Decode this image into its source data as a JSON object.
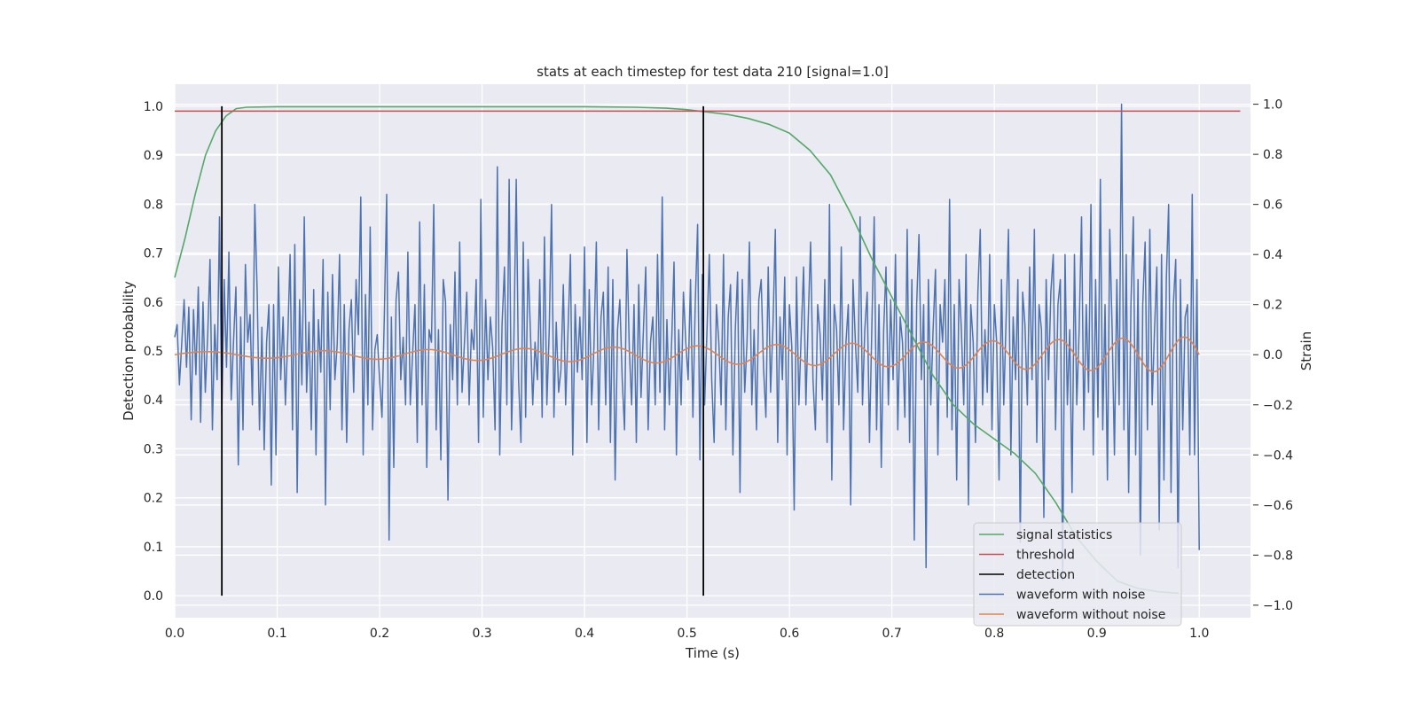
{
  "chart_data": {
    "type": "line",
    "title": "stats at each timestep for test data 210 [signal=1.0]",
    "xlabel": "Time (s)",
    "ylabel": "Detection probability",
    "y2label": "Strain",
    "xlim": [
      0.0,
      1.05
    ],
    "ylim": [
      -0.045,
      1.045
    ],
    "y2lim": [
      -1.05,
      1.08
    ],
    "xticks": [
      "0.0",
      "0.1",
      "0.2",
      "0.3",
      "0.4",
      "0.5",
      "0.6",
      "0.7",
      "0.8",
      "0.9",
      "1.0"
    ],
    "yticks": [
      "0.0",
      "0.1",
      "0.2",
      "0.3",
      "0.4",
      "0.5",
      "0.6",
      "0.7",
      "0.8",
      "0.9",
      "1.0"
    ],
    "y2ticks": [
      "−1.0",
      "−0.8",
      "−0.6",
      "−0.4",
      "−0.2",
      "0.0",
      "0.2",
      "0.4",
      "0.6",
      "0.8",
      "1.0"
    ],
    "grid": true,
    "legend_position": "bottom-right",
    "colors": {
      "background": "#eaeaf2",
      "grid": "#ffffff",
      "signal_statistics": "#55a868",
      "threshold": "#c44e52",
      "detection": "#000000",
      "waveform_with_noise": "#4c72b0",
      "waveform_without_noise": "#dd8452"
    },
    "series": [
      {
        "name": "signal statistics",
        "axis": "left",
        "x": [
          0.0,
          0.01,
          0.02,
          0.03,
          0.04,
          0.05,
          0.06,
          0.07,
          0.1,
          0.2,
          0.3,
          0.4,
          0.45,
          0.48,
          0.5,
          0.52,
          0.54,
          0.56,
          0.58,
          0.6,
          0.62,
          0.64,
          0.66,
          0.68,
          0.7,
          0.72,
          0.74,
          0.76,
          0.78,
          0.8,
          0.82,
          0.84,
          0.86,
          0.88,
          0.9,
          0.92,
          0.94,
          0.96,
          0.98
        ],
        "y": [
          0.65,
          0.73,
          0.82,
          0.9,
          0.95,
          0.98,
          0.995,
          0.998,
          0.999,
          0.999,
          0.999,
          0.999,
          0.998,
          0.996,
          0.993,
          0.988,
          0.983,
          0.975,
          0.963,
          0.945,
          0.91,
          0.86,
          0.78,
          0.69,
          0.61,
          0.53,
          0.45,
          0.39,
          0.35,
          0.32,
          0.29,
          0.25,
          0.19,
          0.12,
          0.07,
          0.03,
          0.015,
          0.008,
          0.005
        ]
      },
      {
        "name": "threshold",
        "axis": "left",
        "x": [
          0.0,
          1.04
        ],
        "y": [
          0.99,
          0.99
        ]
      },
      {
        "name": "detection",
        "axis": "left",
        "segments": [
          {
            "x": 0.046,
            "y0": 0.0,
            "y1": 1.0
          },
          {
            "x": 0.516,
            "y0": 0.0,
            "y1": 1.0
          }
        ]
      },
      {
        "name": "waveform with noise",
        "axis": "right",
        "x_start": 0.0,
        "x_end": 1.0,
        "y": [
          0.07,
          0.12,
          -0.12,
          0.05,
          0.22,
          -0.05,
          0.19,
          -0.26,
          0.18,
          -0.08,
          0.27,
          -0.27,
          0.21,
          -0.15,
          0.08,
          0.38,
          -0.3,
          0.12,
          -0.1,
          0.55,
          -0.24,
          0.3,
          -0.05,
          0.41,
          -0.18,
          0.06,
          0.27,
          -0.44,
          0.15,
          -0.3,
          0.36,
          0.05,
          0.16,
          -0.2,
          0.6,
          0.25,
          -0.3,
          0.11,
          -0.38,
          0.05,
          0.2,
          -0.52,
          0.2,
          -0.4,
          0.35,
          -0.1,
          0.15,
          -0.2,
          0.07,
          0.4,
          -0.3,
          0.44,
          -0.55,
          0.22,
          -0.12,
          0.55,
          -0.15,
          0.13,
          -0.3,
          0.26,
          -0.4,
          0.14,
          -0.07,
          0.38,
          -0.6,
          0.25,
          -0.22,
          0.32,
          -0.1,
          0.04,
          0.4,
          -0.3,
          0.2,
          -0.35,
          0.1,
          0.22,
          -0.15,
          0.3,
          0.08,
          0.63,
          -0.4,
          0.24,
          -0.2,
          0.51,
          -0.3,
          0.02,
          0.08,
          -0.1,
          -0.25,
          0.16,
          0.64,
          -0.74,
          0.15,
          -0.45,
          0.22,
          0.33,
          -0.1,
          0.07,
          -0.2,
          0.41,
          -0.2,
          0.0,
          0.2,
          -0.35,
          0.53,
          -0.2,
          0.28,
          -0.45,
          0.1,
          0.05,
          0.6,
          -0.3,
          0.1,
          -0.42,
          0.3,
          0.21,
          -0.58,
          0.12,
          -0.1,
          0.33,
          -0.2,
          0.45,
          -0.15,
          0.05,
          0.25,
          -0.2,
          0.1,
          0.02,
          0.3,
          -0.35,
          0.62,
          -0.25,
          0.22,
          -0.1,
          0.15,
          0.03,
          -0.3,
          0.75,
          -0.4,
          0.12,
          0.35,
          -0.2,
          0.7,
          -0.3,
          0.05,
          0.7,
          -0.1,
          -0.35,
          0.45,
          -0.25,
          0.38,
          0.1,
          -0.2,
          0.05,
          -0.1,
          0.3,
          -0.25,
          0.47,
          -0.2,
          0.1,
          0.6,
          -0.25,
          0.13,
          -0.15,
          -0.06,
          0.28,
          -0.2,
          0.1,
          0.4,
          -0.4,
          0.2,
          -0.07,
          0.15,
          -0.1,
          0.43,
          -0.35,
          0.26,
          -0.2,
          0.03,
          0.45,
          -0.3,
          0.15,
          0.25,
          -0.2,
          0.35,
          -0.35,
          0.3,
          -0.5,
          0.1,
          0.22,
          -0.1,
          -0.3,
          0.42,
          0.02,
          -0.2,
          0.2,
          -0.35,
          0.28,
          -0.17,
          0.1,
          0.35,
          -0.3,
          0.05,
          0.15,
          -0.2,
          0.4,
          -0.15,
          0.63,
          -0.3,
          0.14,
          -0.2,
          0.06,
          0.37,
          -0.4,
          0.1,
          -0.2,
          0.25,
          0.05,
          -0.1,
          0.3,
          -0.25,
          0.2,
          0.52,
          -0.42,
          0.32,
          -0.2,
          0.1,
          0.4,
          -0.1,
          -0.35,
          0.2,
          0.05,
          -0.2,
          0.4,
          -0.3,
          0.15,
          0.28,
          -0.4,
          0.1,
          0.33,
          -0.55,
          0.3,
          -0.15,
          0.05,
          0.45,
          -0.2,
          0.1,
          -0.3,
          0.22,
          0.3,
          -0.05,
          -0.25,
          0.35,
          -0.15,
          0.12,
          0.5,
          -0.35,
          0.15,
          -0.1,
          0.31,
          -0.4,
          0.2,
          0.03,
          -0.62,
          0.31,
          -0.2,
          0.08,
          0.35,
          -0.2,
          0.15,
          0.45,
          -0.1,
          -0.3,
          0.2,
          0.08,
          -0.18,
          0.3,
          -0.35,
          0.6,
          -0.5,
          0.2,
          0.1,
          -0.2,
          0.43,
          -0.3,
          0.05,
          0.2,
          -0.6,
          0.3,
          0.05,
          -0.15,
          0.55,
          -0.2,
          0.1,
          0.25,
          -0.35,
          0.12,
          0.55,
          -0.3,
          0.2,
          -0.45,
          0.1,
          0.35,
          -0.2,
          0.22,
          -0.1,
          0.4,
          -0.3,
          0.15,
          0.05,
          -0.25,
          0.5,
          -0.35,
          0.3,
          -0.74,
          0.2,
          0.48,
          -0.1,
          0.2,
          -0.85,
          0.3,
          -0.2,
          0.1,
          0.34,
          -0.4,
          0.2,
          0.05,
          0.3,
          -0.25,
          0.62,
          -0.3,
          0.2,
          -0.5,
          0.3,
          0.1,
          -0.2,
          0.4,
          -0.6,
          0.2,
          0.05,
          -0.35,
          0.25,
          0.5,
          -0.2,
          0.1,
          -0.15,
          0.4,
          -0.3,
          0.2,
          0.05,
          -0.5,
          0.3,
          -0.2,
          0.15,
          0.5,
          -0.4,
          0.15,
          -0.1,
          0.3,
          -0.75,
          0.25,
          0.12,
          -0.2,
          0.35,
          -0.1,
          0.5,
          -0.35,
          0.2,
          0.1,
          -0.65,
          0.3,
          -0.1,
          0.25,
          0.4,
          -0.3,
          0.2,
          0.3,
          -0.9,
          0.4,
          -0.2,
          0.1,
          -0.55,
          0.4,
          -0.2,
          0.1,
          0.55,
          -0.3,
          0.2,
          -0.15,
          0.6,
          -0.4,
          0.3,
          -0.25,
          0.7,
          -0.3,
          0.2,
          -0.5,
          0.5,
          0.1,
          -0.4,
          0.3,
          -0.2,
          1.0,
          -0.3,
          0.4,
          -0.55,
          0.2,
          0.55,
          -0.4,
          0.3,
          -0.8,
          0.2,
          0.45,
          -0.3,
          0.5,
          -0.2,
          0.1,
          0.35,
          -0.7,
          0.4,
          -0.5,
          0.3,
          0.6,
          -0.55,
          0.2,
          0.38,
          -0.85,
          0.3,
          -0.3,
          0.15,
          0.2,
          -0.4,
          0.64,
          -0.4,
          0.3,
          -0.78
        ]
      },
      {
        "name": "waveform without noise",
        "axis": "right",
        "x_start": 0.0,
        "x_end": 1.0
      }
    ]
  }
}
